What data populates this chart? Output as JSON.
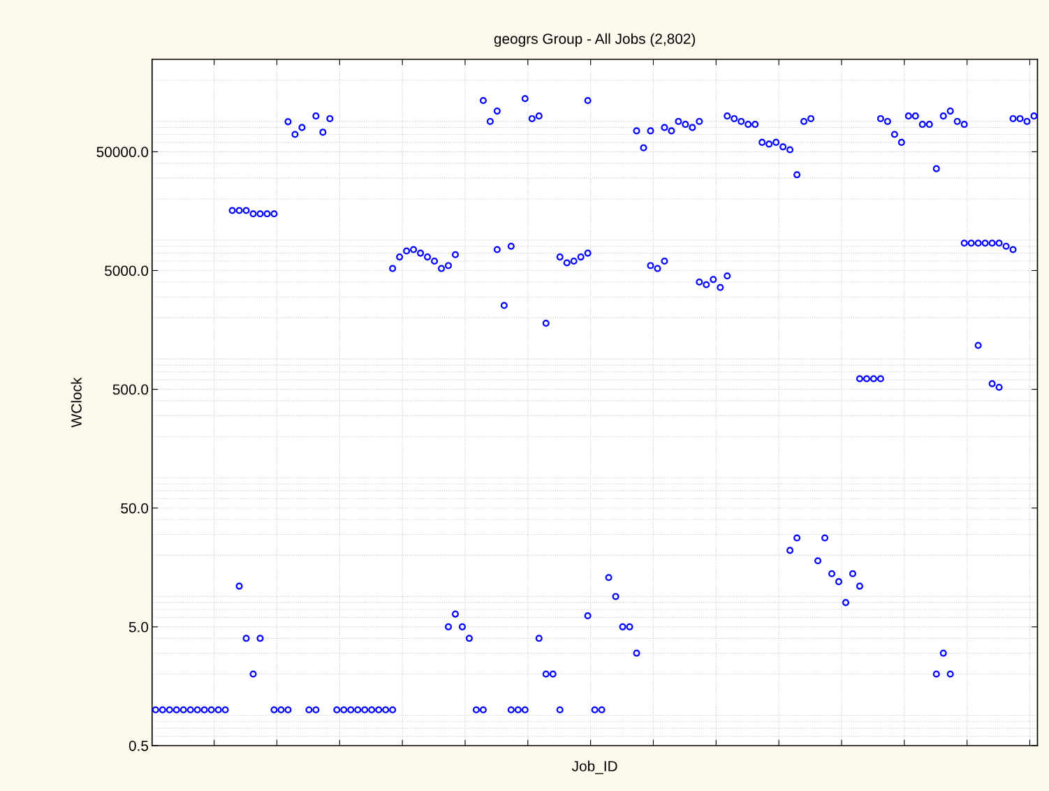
{
  "chart_data": {
    "type": "scatter",
    "title": "geogrs Group - All Jobs (2,802)",
    "xlabel": "Job_ID",
    "ylabel": "WClock",
    "categories": [
      null,
      null,
      null,
      null,
      null,
      null,
      null,
      null,
      null,
      null,
      null,
      null,
      null,
      null,
      null,
      null,
      null,
      null,
      null,
      null,
      null,
      null,
      null,
      null,
      null,
      null,
      null,
      null,
      null,
      null,
      null,
      null,
      null,
      null,
      null,
      null,
      null,
      null,
      null,
      null,
      null,
      null,
      null,
      null,
      null,
      null,
      null,
      null,
      null,
      null,
      null,
      null,
      null,
      null,
      null,
      null,
      null,
      null,
      null,
      null,
      null,
      null,
      null,
      null,
      null,
      null,
      null,
      null,
      null,
      null,
      null,
      null,
      null,
      null,
      null,
      null,
      null,
      null,
      null,
      null,
      null,
      null,
      null,
      null,
      null,
      null,
      null,
      null,
      null,
      null,
      null,
      null,
      null,
      null,
      null,
      null,
      null,
      null,
      null,
      null,
      null,
      null,
      null,
      null,
      null,
      null,
      null,
      null,
      null,
      null,
      null,
      null,
      null,
      null,
      null,
      null,
      null,
      null,
      null,
      null,
      null,
      null,
      null,
      null,
      null,
      null,
      null
    ],
    "series": [
      {
        "color": "#0000ff",
        "values": [
          1,
          1,
          1,
          1,
          1,
          1,
          1,
          1,
          1,
          1,
          1,
          null,
          11,
          4,
          2,
          4,
          null,
          1,
          1,
          1,
          null,
          null,
          1,
          1,
          null,
          null,
          1,
          1,
          1,
          1,
          1,
          1,
          1,
          1,
          1,
          null,
          null,
          null,
          null,
          null,
          null,
          null,
          5,
          6.4,
          5,
          4,
          1,
          1,
          null,
          null,
          null,
          1,
          1,
          1,
          null,
          4,
          2,
          2,
          1,
          null,
          null,
          null,
          6.2,
          1,
          1,
          13,
          9,
          5,
          5,
          3,
          null,
          null,
          null,
          null,
          null,
          null,
          null,
          null,
          null,
          null,
          null,
          null,
          null,
          null,
          null,
          null,
          null,
          null,
          null,
          null,
          null,
          22,
          28,
          null,
          null,
          18,
          28,
          14,
          12,
          8,
          14,
          11,
          null,
          null,
          null,
          null,
          null,
          null,
          null,
          null,
          null,
          null,
          2,
          3,
          2,
          null,
          null,
          null,
          1170,
          null,
          557,
          520,
          null,
          null,
          null,
          null,
          null
        ]
      },
      {
        "color": "#0000ff",
        "values": [
          null,
          null,
          null,
          null,
          null,
          null,
          null,
          null,
          null,
          null,
          null,
          null,
          null,
          null,
          null,
          null,
          null,
          null,
          null,
          null,
          null,
          null,
          null,
          null,
          null,
          null,
          null,
          null,
          null,
          null,
          null,
          null,
          null,
          null,
          5200,
          6500,
          7300,
          7500,
          7000,
          6500,
          6000,
          5200,
          5500,
          6800,
          null,
          null,
          null,
          null,
          null,
          7500,
          2540,
          8000,
          null,
          null,
          null,
          null,
          1800,
          null,
          6500,
          5800,
          6000,
          6500,
          7000,
          null,
          null,
          null,
          null,
          null,
          null,
          null,
          null,
          5500,
          5200,
          6000,
          null,
          null,
          null,
          null,
          4000,
          3800,
          4200,
          3600,
          4500,
          null,
          null,
          null,
          null,
          null,
          null,
          null,
          null,
          null,
          null,
          null,
          null,
          null,
          null,
          null,
          null,
          null,
          null,
          613,
          613,
          613,
          613,
          null,
          null,
          null,
          null,
          null,
          null,
          null,
          null,
          null,
          null,
          null,
          8500,
          8500,
          8500,
          8500,
          8500,
          8500,
          8000,
          7500,
          null,
          null,
          null
        ]
      },
      {
        "color": "#0000ff",
        "values": [
          null,
          null,
          null,
          null,
          null,
          null,
          null,
          null,
          null,
          null,
          null,
          16000,
          16000,
          16000,
          15000,
          15000,
          15000,
          15000,
          null,
          89500,
          70000,
          80000,
          null,
          100000,
          73000,
          95000,
          null,
          null,
          null,
          null,
          null,
          null,
          null,
          null,
          null,
          null,
          null,
          null,
          null,
          null,
          null,
          null,
          null,
          null,
          null,
          null,
          null,
          135000,
          90000,
          110000,
          null,
          null,
          null,
          140000,
          95000,
          100000,
          null,
          null,
          null,
          null,
          null,
          null,
          135000,
          null,
          null,
          null,
          null,
          null,
          null,
          75000,
          54000,
          75000,
          null,
          80000,
          75000,
          90000,
          85000,
          80000,
          90000,
          null,
          null,
          null,
          100000,
          95000,
          90000,
          85000,
          85000,
          60000,
          58000,
          60000,
          55000,
          52000,
          32000,
          90000,
          95000,
          null,
          null,
          null,
          null,
          null,
          null,
          null,
          null,
          null,
          95000,
          90000,
          70000,
          60000,
          100000,
          100000,
          85000,
          85000,
          36000,
          100000,
          110000,
          90000,
          85000,
          null,
          null,
          null,
          null,
          null,
          null,
          95000,
          95000,
          90000,
          100000
        ]
      }
    ],
    "log": "y",
    "ylim": [
      0.5,
      300000
    ],
    "yticks": [
      {
        "value": 0.5,
        "label": "0.5"
      },
      {
        "value": 5,
        "label": "5.0"
      },
      {
        "value": 50,
        "label": "50.0"
      },
      {
        "value": 500,
        "label": "500.0"
      },
      {
        "value": 5000,
        "label": "5000.0"
      },
      {
        "value": 50000,
        "label": "50000.0"
      }
    ],
    "grid": true,
    "marker": "circle"
  }
}
